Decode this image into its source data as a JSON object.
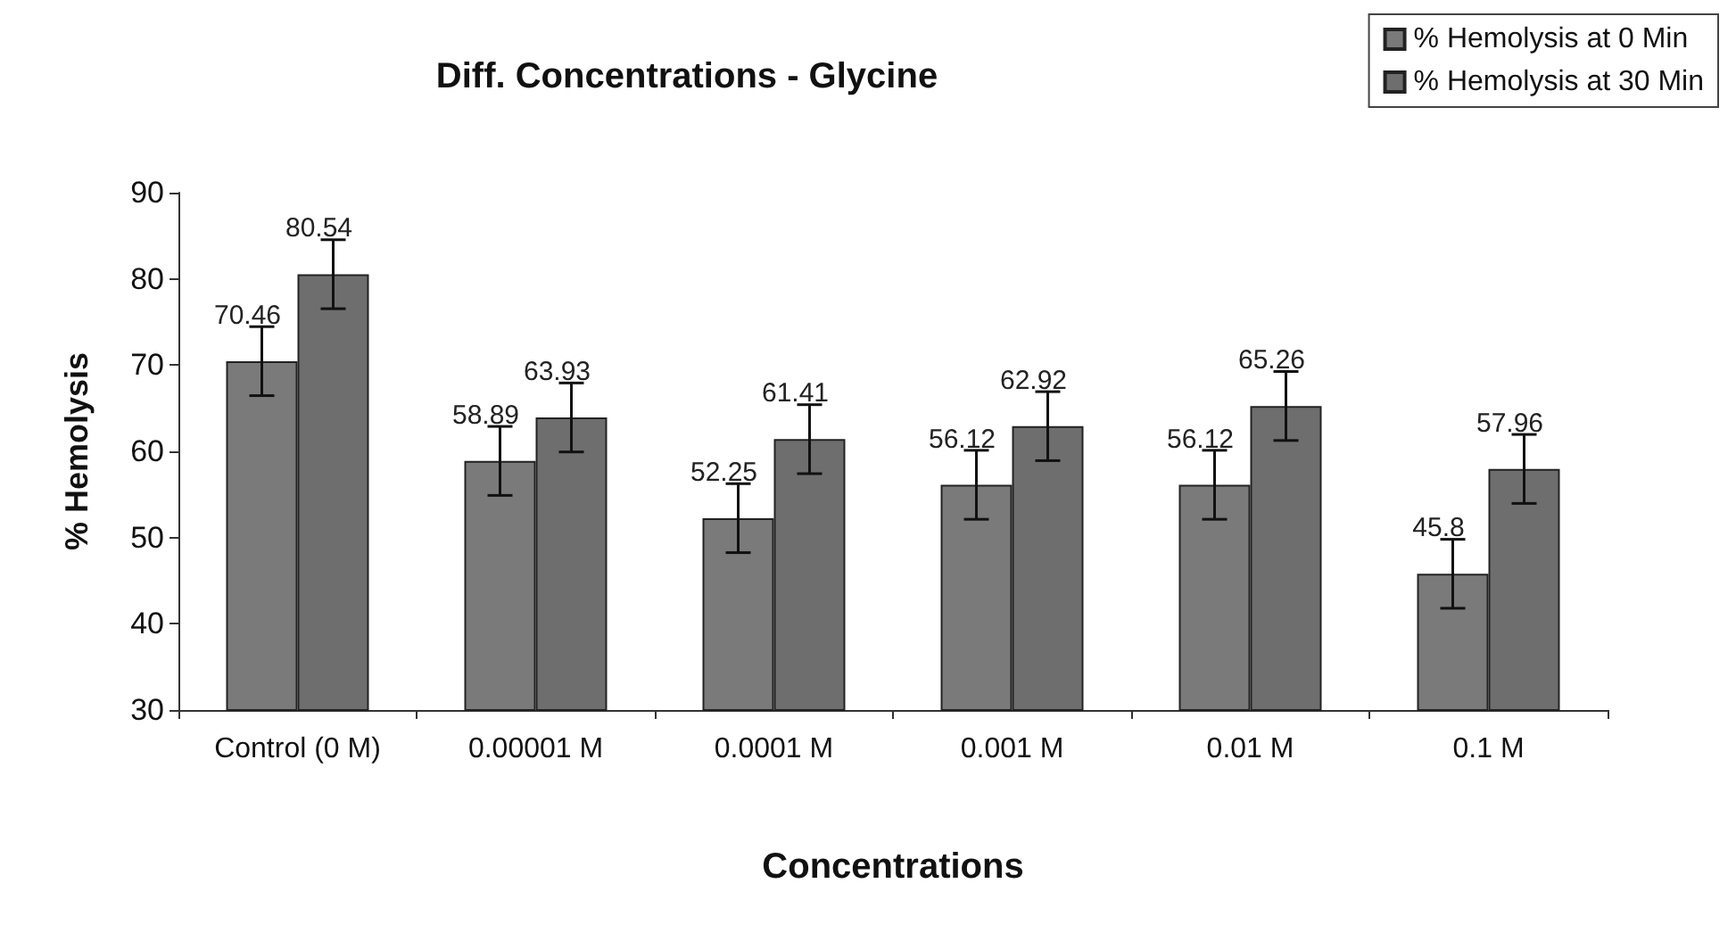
{
  "chart_data": {
    "type": "bar",
    "title": "Diff. Concentrations - Glycine",
    "xlabel": "Concentrations",
    "ylabel": "% Hemolysis",
    "categories": [
      "Control (0 M)",
      "0.00001 M",
      "0.0001 M",
      "0.001 M",
      "0.01 M",
      "0.1 M"
    ],
    "series": [
      {
        "name": "% Hemolysis at 0 Min",
        "color": "#7a7a7a",
        "values": [
          70.46,
          58.89,
          52.25,
          56.12,
          56.12,
          45.8
        ],
        "errors": [
          4,
          4,
          4,
          4,
          4,
          4
        ]
      },
      {
        "name": "% Hemolysis at 30 Min",
        "color": "#6e6e6e",
        "values": [
          80.54,
          63.93,
          61.41,
          62.92,
          65.26,
          57.96
        ],
        "errors": [
          4,
          4,
          4,
          4,
          4,
          4
        ]
      }
    ],
    "ylim": [
      30,
      90
    ],
    "yticks": [
      30,
      40,
      50,
      60,
      70,
      80,
      90
    ],
    "grid": false,
    "legend": "top right",
    "data_labels": true
  }
}
